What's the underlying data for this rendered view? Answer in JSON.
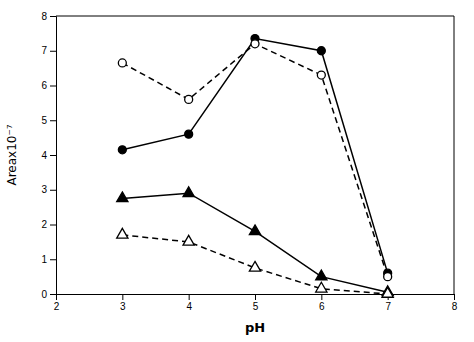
{
  "chart_data": {
    "type": "line",
    "xlabel": "pH",
    "ylabel": "Areax10⁻⁷",
    "x": [
      3,
      4,
      5,
      6,
      7
    ],
    "series": [
      {
        "color": "black",
        "marker": "circle",
        "line_style": "solid",
        "values": [
          4.15,
          4.6,
          7.35,
          7.0,
          0.6
        ]
      },
      {
        "color": "black",
        "marker": "circle-open",
        "line_style": "dashed",
        "values": [
          6.65,
          5.6,
          7.2,
          6.3,
          0.5
        ]
      },
      {
        "color": "black",
        "marker": "triangle",
        "line_style": "solid",
        "values": [
          2.75,
          2.9,
          1.8,
          0.5,
          0.05
        ]
      },
      {
        "color": "black",
        "marker": "triangle-open",
        "line_style": "dashed",
        "values": [
          1.7,
          1.5,
          0.75,
          0.15,
          0.0
        ]
      }
    ],
    "xlim": [
      2,
      8
    ],
    "ylim": [
      0,
      8
    ],
    "xticks": [
      2,
      3,
      4,
      5,
      6,
      7,
      8
    ],
    "yticks": [
      0,
      1,
      2,
      3,
      4,
      5,
      6,
      7,
      8
    ],
    "grid": false
  }
}
